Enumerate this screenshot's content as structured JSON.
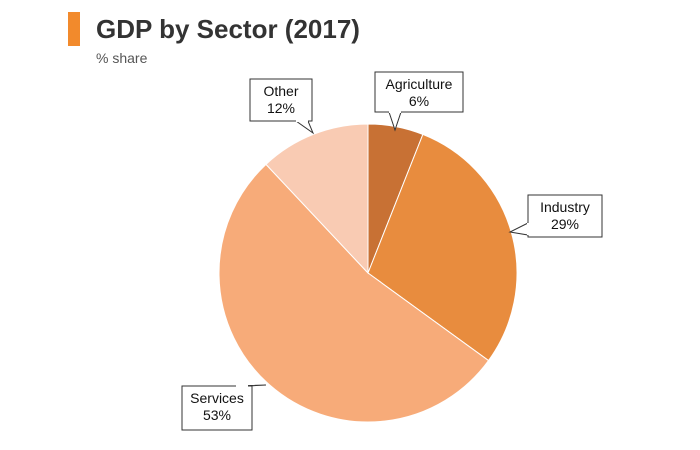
{
  "header": {
    "title": "GDP by Sector (2017)",
    "subtitle": "% share"
  },
  "colors": {
    "accent": "#f28a2c"
  },
  "chart_data": {
    "type": "pie",
    "title": "GDP by Sector (2017)",
    "subtitle": "% share",
    "slices": [
      {
        "label": "Agriculture",
        "value": 6,
        "value_label": "6%",
        "color": "#c87134"
      },
      {
        "label": "Industry",
        "value": 29,
        "value_label": "29%",
        "color": "#e88c3e"
      },
      {
        "label": "Services",
        "value": 53,
        "value_label": "53%",
        "color": "#f7ab79"
      },
      {
        "label": "Other",
        "value": 12,
        "value_label": "12%",
        "color": "#f9cbb3"
      }
    ]
  }
}
